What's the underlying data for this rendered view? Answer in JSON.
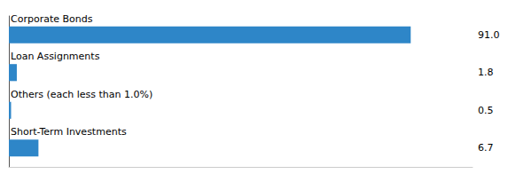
{
  "chart_data": {
    "type": "bar",
    "orientation": "horizontal",
    "categories": [
      "Corporate Bonds",
      "Loan Assignments",
      "Others (each less than 1.0%)",
      "Short-Term Investments"
    ],
    "values": [
      91.0,
      1.8,
      0.5,
      6.7
    ],
    "value_labels": [
      "91.0",
      "1.8",
      "0.5",
      "6.7"
    ],
    "color": "#2E86C8",
    "xlim": [
      0,
      105
    ],
    "grid": false,
    "tick_labels": false,
    "data_labels": true
  }
}
